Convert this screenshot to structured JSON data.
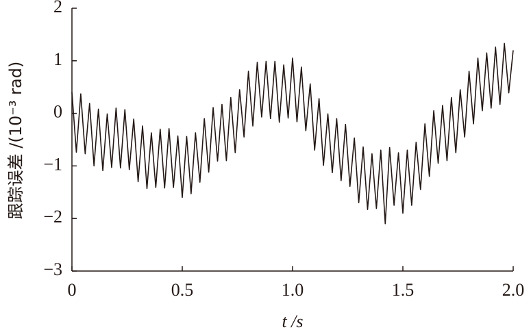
{
  "chart_data": {
    "type": "line",
    "x_label": "t /s",
    "y_label": "跟踪误差 /(10⁻³ rad)",
    "x": [
      0,
      0.02,
      0.04,
      0.06,
      0.08,
      0.1,
      0.12,
      0.14,
      0.16,
      0.18,
      0.2,
      0.22,
      0.24,
      0.26,
      0.28,
      0.3,
      0.32,
      0.34,
      0.36,
      0.38,
      0.4,
      0.42,
      0.44,
      0.46,
      0.48,
      0.5,
      0.52,
      0.54,
      0.56,
      0.58,
      0.6,
      0.62,
      0.64,
      0.66,
      0.68,
      0.7,
      0.72,
      0.74,
      0.76,
      0.78,
      0.8,
      0.82,
      0.84,
      0.86,
      0.88,
      0.9,
      0.92,
      0.94,
      0.96,
      0.98,
      1.0,
      1.02,
      1.04,
      1.06,
      1.08,
      1.1,
      1.12,
      1.14,
      1.16,
      1.18,
      1.2,
      1.22,
      1.24,
      1.26,
      1.28,
      1.3,
      1.32,
      1.34,
      1.36,
      1.38,
      1.4,
      1.42,
      1.44,
      1.46,
      1.48,
      1.5,
      1.52,
      1.54,
      1.56,
      1.58,
      1.6,
      1.62,
      1.64,
      1.66,
      1.68,
      1.7,
      1.72,
      1.74,
      1.76,
      1.78,
      1.8,
      1.82,
      1.84,
      1.86,
      1.88,
      1.9,
      1.92,
      1.94,
      1.96,
      1.98,
      2.0
    ],
    "series": [
      {
        "color": "#231815",
        "values": [
          0.4,
          -0.74,
          0.37,
          -0.77,
          0.19,
          -1.0,
          0.08,
          -1.09,
          -0.01,
          -1.03,
          0.1,
          -1.04,
          0.07,
          -1.07,
          -0.11,
          -1.3,
          -0.24,
          -1.43,
          -0.37,
          -1.41,
          -0.3,
          -1.42,
          -0.29,
          -1.41,
          -0.43,
          -1.6,
          -0.44,
          -1.53,
          -0.37,
          -1.31,
          -0.1,
          -1.12,
          0.11,
          -0.91,
          0.17,
          -0.9,
          0.3,
          -0.75,
          0.45,
          -0.45,
          0.8,
          -0.24,
          0.97,
          -0.07,
          0.99,
          -0.1,
          0.99,
          -0.17,
          0.92,
          -0.09,
          1.05,
          -0.16,
          0.88,
          -0.33,
          0.56,
          -0.7,
          0.28,
          -0.99,
          -0.01,
          -1.13,
          -0.1,
          -1.28,
          -0.21,
          -1.39,
          -0.47,
          -1.7,
          -0.64,
          -1.83,
          -0.77,
          -1.81,
          -0.7,
          -2.1,
          -0.65,
          -1.75,
          -0.75,
          -1.9,
          -0.7,
          -1.75,
          -0.55,
          -1.45,
          -0.2,
          -1.2,
          0.05,
          -0.95,
          0.15,
          -0.9,
          0.3,
          -0.75,
          0.45,
          -0.45,
          0.8,
          -0.2,
          1.05,
          0.05,
          1.15,
          0.1,
          1.26,
          0.17,
          1.33,
          0.39,
          1.2
        ]
      }
    ],
    "xlim": [
      0,
      2
    ],
    "ylim": [
      -3,
      2
    ],
    "xticks": [
      0,
      0.5,
      {
        "value": 1,
        "label": "1.0"
      },
      1.5,
      {
        "value": 2,
        "label": "2.0"
      }
    ],
    "yticks": [
      {
        "value": -3,
        "label": "−3"
      },
      {
        "value": -2,
        "label": "−2"
      },
      {
        "value": -1,
        "label": "−1"
      },
      0,
      1,
      2
    ]
  }
}
